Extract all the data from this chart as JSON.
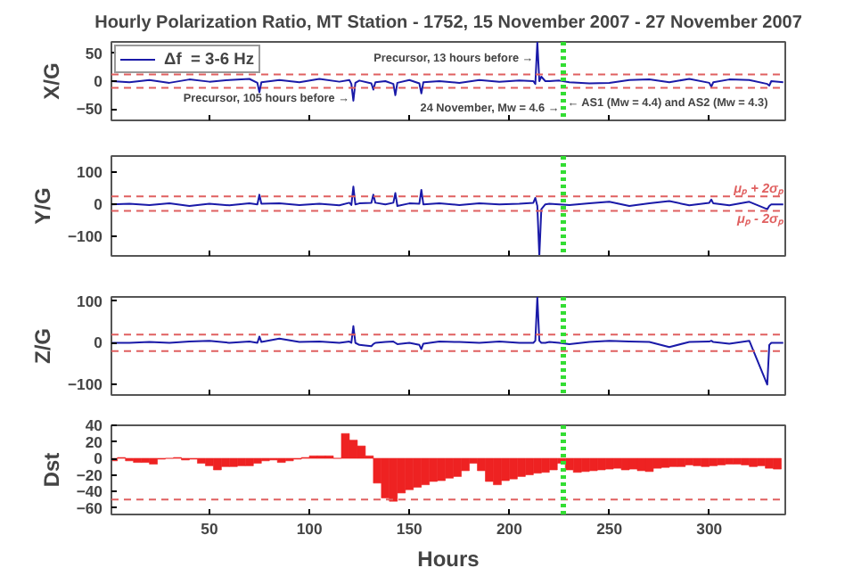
{
  "chart_data": [
    {
      "type": "line",
      "title": "Hourly Polarization Ratio, MT Station - 1752, 15 November 2007 - 27 November 2007",
      "ylabel": "X/G",
      "x": [
        1,
        10,
        20,
        30,
        40,
        50,
        60,
        70,
        74,
        75,
        76,
        85,
        95,
        105,
        115,
        120,
        121,
        122,
        123,
        125,
        131,
        132,
        133,
        138,
        142,
        143,
        144,
        150,
        155,
        156,
        157,
        165,
        175,
        185,
        195,
        205,
        212,
        213,
        214,
        215,
        216,
        218,
        220,
        225,
        230,
        240,
        250,
        260,
        270,
        280,
        290,
        300,
        301,
        302,
        310,
        320,
        329,
        330,
        331,
        337
      ],
      "series": [
        {
          "name": "Δf  = 3-6 Hz",
          "color": "#1a1aa8",
          "values": [
            0,
            -2,
            2,
            -3,
            3,
            -1,
            2,
            4,
            -3,
            -20,
            -2,
            2,
            -2,
            4,
            -1,
            2,
            -5,
            -35,
            -3,
            1,
            -4,
            -15,
            -2,
            0,
            -5,
            -25,
            -3,
            2,
            -4,
            -22,
            -2,
            0,
            -3,
            2,
            -1,
            1,
            0,
            -5,
            70,
            0,
            8,
            0,
            0,
            1,
            -2,
            -4,
            -3,
            2,
            3,
            -2,
            4,
            -3,
            -10,
            -2,
            3,
            2,
            -5,
            -8,
            0,
            -2
          ]
        }
      ],
      "xlim": [
        1,
        338
      ],
      "ylim": [
        -70,
        70
      ],
      "xticks": [
        50,
        100,
        150,
        200,
        250,
        300
      ],
      "yticks": [
        -50,
        0,
        50
      ],
      "tick_labels": "y",
      "legend": "top left",
      "ref_lines": [
        {
          "axis": "y",
          "value": 12,
          "color": "#e06060",
          "line_style": "dashed"
        },
        {
          "axis": "y",
          "value": -12,
          "color": "#e06060",
          "line_style": "dashed"
        },
        {
          "axis": "x",
          "value": 227,
          "color": "#33dd33",
          "line_style": "dotted"
        }
      ],
      "annotations": [
        {
          "text": "Precursor, 13 hours before →",
          "x": 212,
          "y": 40
        },
        {
          "text": "Precursor, 105 hours before →",
          "x": 120,
          "y": -32
        },
        {
          "text": "24 November, Mw = 4.6 →",
          "x": 225,
          "y": -50
        },
        {
          "text": "← AS1 (Mw = 4.4) and AS2 (Mw = 4.3)",
          "x": 229,
          "y": -40
        }
      ]
    },
    {
      "type": "line",
      "ylabel": "Y/G",
      "x": [
        1,
        10,
        20,
        30,
        40,
        50,
        60,
        70,
        74,
        75,
        76,
        85,
        95,
        105,
        115,
        120,
        121,
        122,
        123,
        125,
        131,
        132,
        133,
        138,
        142,
        143,
        144,
        150,
        155,
        156,
        157,
        165,
        175,
        185,
        195,
        205,
        212,
        213,
        214,
        215,
        216,
        218,
        220,
        225,
        230,
        240,
        250,
        260,
        270,
        280,
        290,
        300,
        301,
        302,
        310,
        320,
        329,
        330,
        331,
        337
      ],
      "series": [
        {
          "color": "#1a1aa8",
          "values": [
            0,
            2,
            -2,
            3,
            -5,
            2,
            -3,
            3,
            0,
            30,
            2,
            3,
            -2,
            2,
            -3,
            5,
            -2,
            55,
            0,
            3,
            5,
            30,
            5,
            0,
            5,
            35,
            -5,
            3,
            2,
            45,
            0,
            3,
            -2,
            3,
            0,
            2,
            5,
            20,
            -5,
            -160,
            -15,
            0,
            2,
            0,
            -2,
            3,
            8,
            -5,
            3,
            10,
            -3,
            5,
            15,
            3,
            -3,
            8,
            -15,
            -5,
            0,
            0
          ]
        }
      ],
      "xlim": [
        1,
        338
      ],
      "ylim": [
        -160,
        150
      ],
      "xticks": [
        50,
        100,
        150,
        200,
        250,
        300
      ],
      "yticks": [
        -100,
        0,
        100
      ],
      "tick_labels": "y",
      "ref_lines": [
        {
          "axis": "y",
          "value": 25,
          "color": "#e06060",
          "line_style": "dashed",
          "label": "μₚ + 2σₚ"
        },
        {
          "axis": "y",
          "value": -20,
          "color": "#e06060",
          "line_style": "dashed",
          "label": "μₚ - 2σₚ"
        },
        {
          "axis": "x",
          "value": 227,
          "color": "#33dd33",
          "line_style": "dotted"
        }
      ]
    },
    {
      "type": "line",
      "ylabel": "Z/G",
      "x": [
        1,
        10,
        20,
        30,
        40,
        50,
        60,
        70,
        74,
        75,
        76,
        85,
        95,
        105,
        115,
        120,
        121,
        122,
        123,
        125,
        131,
        132,
        133,
        138,
        142,
        143,
        144,
        150,
        155,
        156,
        157,
        165,
        175,
        185,
        195,
        205,
        212,
        213,
        214,
        215,
        216,
        218,
        220,
        225,
        230,
        240,
        250,
        260,
        270,
        280,
        290,
        300,
        301,
        302,
        310,
        320,
        329,
        330,
        331,
        337
      ],
      "series": [
        {
          "color": "#1a1aa8",
          "values": [
            0,
            0,
            2,
            0,
            3,
            5,
            0,
            3,
            0,
            15,
            2,
            10,
            2,
            3,
            0,
            3,
            0,
            40,
            0,
            -5,
            -8,
            -3,
            0,
            2,
            3,
            0,
            -3,
            0,
            -5,
            -15,
            -2,
            3,
            2,
            0,
            3,
            0,
            0,
            5,
            110,
            5,
            0,
            0,
            2,
            0,
            -3,
            2,
            5,
            3,
            2,
            -10,
            2,
            3,
            5,
            2,
            -2,
            5,
            -100,
            -5,
            0,
            0
          ]
        }
      ],
      "xlim": [
        1,
        338
      ],
      "ylim": [
        -125,
        110
      ],
      "xticks": [
        50,
        100,
        150,
        200,
        250,
        300
      ],
      "yticks": [
        -100,
        0,
        100
      ],
      "tick_labels": "y",
      "ref_lines": [
        {
          "axis": "y",
          "value": 20,
          "color": "#e06060",
          "line_style": "dashed"
        },
        {
          "axis": "y",
          "value": -20,
          "color": "#e06060",
          "line_style": "dashed"
        },
        {
          "axis": "x",
          "value": 227,
          "color": "#33dd33",
          "line_style": "dotted"
        }
      ]
    },
    {
      "type": "bar",
      "ylabel": "Dst",
      "xlabel": "Hours",
      "x": [
        2,
        6,
        10,
        14,
        18,
        22,
        26,
        30,
        34,
        38,
        42,
        46,
        50,
        54,
        58,
        62,
        66,
        70,
        74,
        78,
        82,
        86,
        90,
        94,
        98,
        102,
        106,
        110,
        114,
        118,
        122,
        126,
        130,
        134,
        138,
        142,
        146,
        150,
        154,
        158,
        162,
        166,
        170,
        174,
        178,
        182,
        186,
        190,
        194,
        198,
        202,
        206,
        210,
        214,
        218,
        222,
        226,
        230,
        234,
        238,
        242,
        246,
        250,
        254,
        258,
        262,
        266,
        270,
        274,
        278,
        282,
        286,
        290,
        294,
        298,
        302,
        306,
        310,
        314,
        318,
        322,
        326,
        330,
        334
      ],
      "series": [
        {
          "color": "#ee2222",
          "values": [
            -3,
            1,
            -3,
            -5,
            -5,
            -7,
            -1,
            0,
            1,
            -2,
            -1,
            -6,
            -9,
            -14,
            -10,
            -10,
            -9,
            -9,
            -6,
            -3,
            -2,
            -5,
            -3,
            -1,
            1,
            3,
            3,
            3,
            0,
            30,
            22,
            15,
            3,
            -30,
            -48,
            -52,
            -42,
            -38,
            -35,
            -32,
            -28,
            -27,
            -24,
            -22,
            -15,
            -6,
            -15,
            -28,
            -32,
            -27,
            -25,
            -22,
            -20,
            -18,
            -17,
            -14,
            -6,
            -14,
            -17,
            -16,
            -15,
            -14,
            -13,
            -12,
            -14,
            -13,
            -15,
            -16,
            -12,
            -11,
            -10,
            -10,
            -8,
            -9,
            -10,
            -9,
            -8,
            -7,
            -7,
            -8,
            -10,
            -9,
            -12,
            -13
          ]
        }
      ],
      "xlim": [
        1,
        338
      ],
      "ylim": [
        -68,
        40
      ],
      "xticks": [
        50,
        100,
        150,
        200,
        250,
        300
      ],
      "yticks": [
        -60,
        -40,
        -20,
        0,
        20,
        40
      ],
      "ref_lines": [
        {
          "axis": "y",
          "value": -50,
          "color": "#e06060",
          "line_style": "dashed"
        },
        {
          "axis": "x",
          "value": 227,
          "color": "#33dd33",
          "line_style": "dotted"
        }
      ]
    }
  ]
}
